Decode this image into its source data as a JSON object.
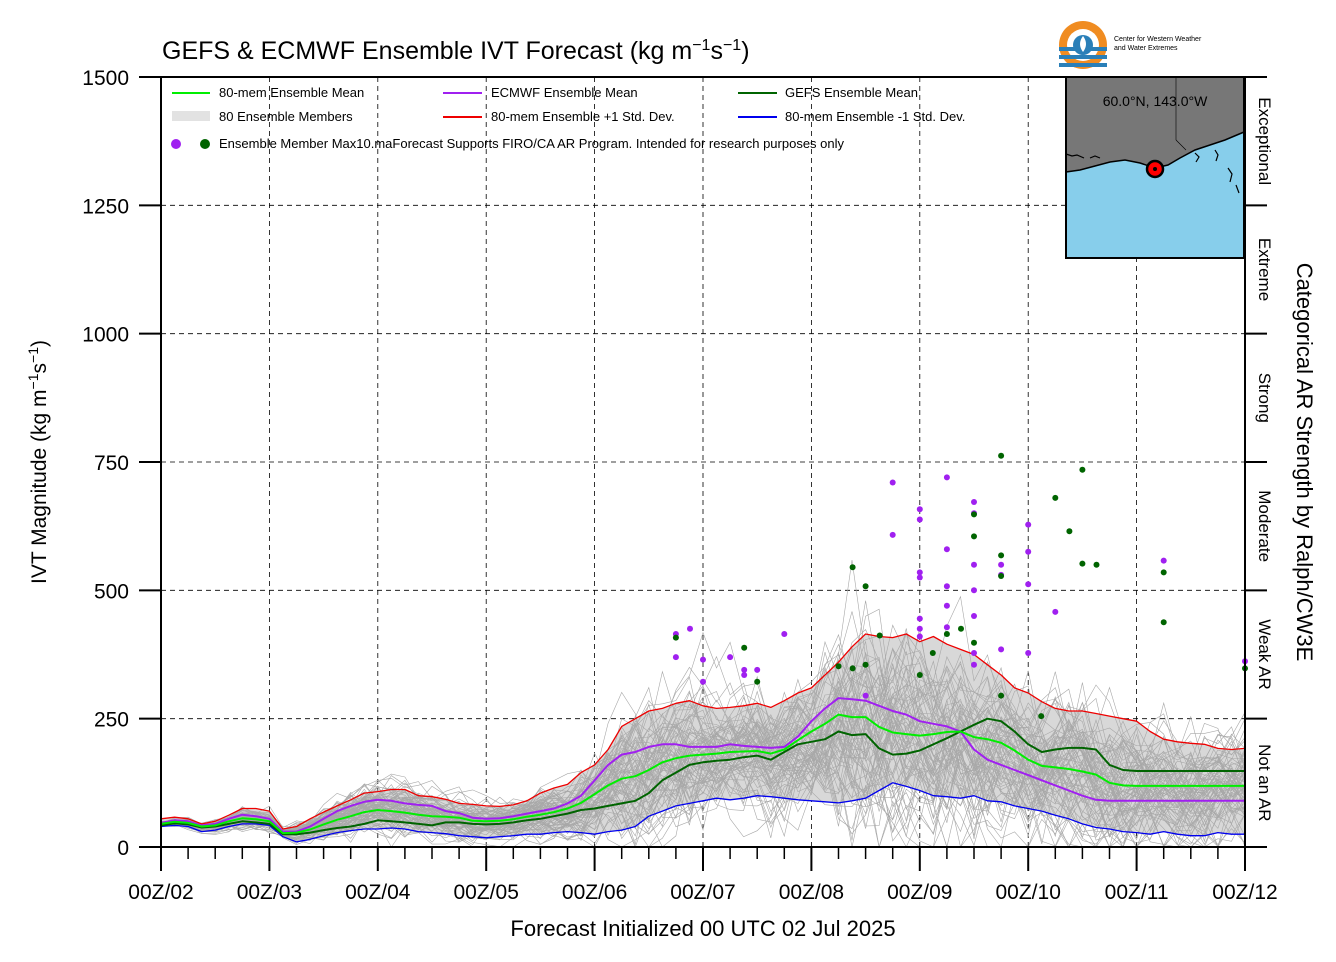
{
  "chart_data": {
    "type": "line",
    "title": "GEFS & ECMWF Ensemble IVT Forecast (kg m⁻¹s⁻¹)",
    "title_main": "GEFS & ECMWF Ensemble IVT Forecast (kg m",
    "title_exp1": "−1",
    "title_mid": "s",
    "title_exp2": "−1",
    "title_end": ")",
    "xlabel": "Forecast Initialized 00 UTC 02 Jul 2025",
    "ylabel": "IVT Magnitude (kg m⁻¹s⁻¹)",
    "ylabel_main": "IVT Magnitude (kg m",
    "ylabel_exp1": "−1",
    "ylabel_mid": "s",
    "ylabel_exp2": "−1",
    "ylabel_end": ")",
    "right_axis_label": "Categorical AR Strength by Ralph/CW3E",
    "ylim": [
      0,
      1500
    ],
    "xlim": [
      0,
      10
    ],
    "grid": true,
    "x_ticks": [
      "00Z/02",
      "00Z/03",
      "00Z/04",
      "00Z/05",
      "00Z/06",
      "00Z/07",
      "00Z/08",
      "00Z/09",
      "00Z/10",
      "00Z/11",
      "00Z/12"
    ],
    "y_ticks": [
      0,
      250,
      500,
      750,
      1000,
      1250,
      1500
    ],
    "categories_right": [
      {
        "name": "Not an AR",
        "from": 0,
        "to": 250
      },
      {
        "name": "Weak AR",
        "from": 250,
        "to": 500
      },
      {
        "name": "Moderate",
        "from": 500,
        "to": 750
      },
      {
        "name": "Strong",
        "from": 750,
        "to": 1000
      },
      {
        "name": "Extreme",
        "from": 1000,
        "to": 1250
      },
      {
        "name": "Exceptional",
        "from": 1250,
        "to": 1500
      }
    ],
    "legend": {
      "placement": "top-left",
      "entries": [
        {
          "label": "80-mem Ensemble Mean",
          "color": "#00ee00"
        },
        {
          "label": "ECMWF Ensemble Mean",
          "color": "#a020f0"
        },
        {
          "label": "GEFS Ensemble Mean",
          "color": "#006400"
        },
        {
          "label": "80 Ensemble Members",
          "color": "#b0b0b0"
        },
        {
          "label": "80-mem Ensemble +1 Std. Dev.",
          "color": "#ee0000"
        },
        {
          "label": "80-mem Ensemble -1 Std. Dev.",
          "color": "#0000ee"
        }
      ],
      "dots_label": "Ensemble Member Max",
      "note": "10.maForecast Supports FIRO/CA AR Program. Intended for research purposes only"
    },
    "inset_map": {
      "label": "60.0°N, 143.0°W",
      "ocean_color": "#87ceeb",
      "land_color": "#777777",
      "marker_color": "#ff0000"
    },
    "logo_text": [
      "Center for Western Weather",
      "and Water Extremes"
    ],
    "x": [
      0,
      0.125,
      0.25,
      0.375,
      0.5,
      0.625,
      0.75,
      0.875,
      1,
      1.125,
      1.25,
      1.375,
      1.5,
      1.625,
      1.75,
      1.875,
      2,
      2.125,
      2.25,
      2.375,
      2.5,
      2.625,
      2.75,
      2.875,
      3,
      3.125,
      3.25,
      3.375,
      3.5,
      3.625,
      3.75,
      3.875,
      4,
      4.125,
      4.25,
      4.375,
      4.5,
      4.625,
      4.75,
      4.875,
      5,
      5.125,
      5.25,
      5.375,
      5.5,
      5.625,
      5.75,
      5.875,
      6,
      6.125,
      6.25,
      6.375,
      6.5,
      6.625,
      6.75,
      6.875,
      7,
      7.125,
      7.25,
      7.375,
      7.5,
      7.625,
      7.75,
      7.875,
      8,
      8.125,
      8.25,
      8.375,
      8.5,
      8.625,
      8.75,
      8.875,
      9,
      9.125,
      9.25,
      9.375,
      9.5,
      9.625,
      9.75,
      9.875,
      10
    ],
    "series": [
      {
        "name": "80-mem Ensemble +1 Std. Dev.",
        "color": "#ee0000",
        "width": 1.3,
        "values": [
          55,
          58,
          55,
          45,
          50,
          62,
          75,
          75,
          70,
          35,
          40,
          55,
          68,
          80,
          92,
          105,
          108,
          112,
          112,
          100,
          98,
          93,
          85,
          83,
          80,
          79,
          82,
          90,
          105,
          115,
          122,
          145,
          160,
          190,
          235,
          250,
          265,
          270,
          280,
          285,
          275,
          270,
          272,
          275,
          280,
          272,
          285,
          300,
          310,
          335,
          360,
          390,
          415,
          410,
          408,
          415,
          400,
          410,
          395,
          385,
          375,
          355,
          335,
          310,
          300,
          283,
          270,
          265,
          265,
          260,
          255,
          250,
          245,
          225,
          210,
          205,
          202,
          200,
          192,
          190,
          192
        ]
      },
      {
        "name": "80-mem Ensemble -1 Std. Dev.",
        "color": "#0000ee",
        "width": 1.3,
        "values": [
          40,
          42,
          40,
          30,
          33,
          40,
          45,
          45,
          42,
          20,
          10,
          15,
          22,
          28,
          32,
          35,
          35,
          37,
          35,
          30,
          28,
          26,
          22,
          20,
          18,
          20,
          22,
          25,
          25,
          28,
          30,
          28,
          25,
          30,
          33,
          40,
          60,
          70,
          80,
          85,
          90,
          95,
          92,
          95,
          100,
          98,
          95,
          92,
          90,
          88,
          86,
          90,
          95,
          110,
          125,
          118,
          110,
          100,
          98,
          95,
          100,
          90,
          88,
          80,
          75,
          70,
          62,
          55,
          45,
          38,
          35,
          30,
          28,
          25,
          30,
          25,
          22,
          22,
          28,
          25,
          25
        ]
      },
      {
        "name": "GEFS Ensemble Mean",
        "color": "#006400",
        "width": 2,
        "values": [
          42,
          46,
          44,
          38,
          40,
          45,
          50,
          48,
          45,
          25,
          25,
          28,
          33,
          37,
          40,
          45,
          52,
          50,
          48,
          45,
          42,
          48,
          48,
          45,
          44,
          45,
          48,
          52,
          55,
          60,
          65,
          72,
          75,
          80,
          85,
          90,
          105,
          130,
          145,
          160,
          165,
          168,
          170,
          175,
          178,
          170,
          185,
          200,
          205,
          210,
          225,
          218,
          220,
          192,
          180,
          182,
          188,
          200,
          212,
          225,
          238,
          250,
          245,
          225,
          200,
          185,
          190,
          193,
          193,
          190,
          160,
          150,
          148,
          148,
          148,
          148,
          148,
          148,
          148,
          148,
          148
        ]
      },
      {
        "name": "ECMWF Ensemble Mean",
        "color": "#a020f0",
        "width": 2,
        "values": [
          47,
          52,
          50,
          42,
          45,
          55,
          63,
          60,
          55,
          30,
          30,
          40,
          55,
          70,
          80,
          88,
          92,
          90,
          85,
          82,
          80,
          70,
          66,
          57,
          55,
          56,
          60,
          65,
          70,
          75,
          85,
          100,
          130,
          160,
          180,
          185,
          195,
          200,
          200,
          195,
          195,
          195,
          200,
          197,
          195,
          193,
          195,
          215,
          245,
          270,
          290,
          288,
          285,
          275,
          265,
          258,
          245,
          240,
          235,
          225,
          190,
          170,
          160,
          150,
          140,
          130,
          120,
          110,
          100,
          92,
          90,
          90,
          90,
          90,
          90,
          90,
          90,
          90,
          90,
          90,
          90
        ]
      },
      {
        "name": "80-mem Ensemble Mean",
        "color": "#00ee00",
        "width": 2,
        "values": [
          45,
          49,
          47,
          40,
          42,
          50,
          56,
          54,
          50,
          27,
          28,
          34,
          44,
          53,
          60,
          68,
          72,
          70,
          67,
          63,
          60,
          59,
          57,
          51,
          50,
          51,
          54,
          59,
          63,
          68,
          75,
          86,
          103,
          120,
          133,
          138,
          150,
          165,
          173,
          178,
          180,
          182,
          185,
          186,
          187,
          182,
          190,
          208,
          225,
          240,
          258,
          253,
          253,
          234,
          223,
          220,
          217,
          220,
          224,
          225,
          214,
          210,
          203,
          188,
          170,
          158,
          155,
          152,
          147,
          141,
          125,
          120,
          119,
          119,
          119,
          119,
          119,
          119,
          119,
          119,
          119
        ]
      }
    ],
    "max_points": [
      {
        "x": 4.75,
        "y": 415,
        "ensemble": "ECMWF"
      },
      {
        "x": 4.75,
        "y": 370,
        "ensemble": "ECMWF"
      },
      {
        "x": 4.75,
        "y": 408,
        "ensemble": "GEFS"
      },
      {
        "x": 4.88,
        "y": 425,
        "ensemble": "ECMWF"
      },
      {
        "x": 5.0,
        "y": 365,
        "ensemble": "ECMWF"
      },
      {
        "x": 5.0,
        "y": 322,
        "ensemble": "ECMWF"
      },
      {
        "x": 5.25,
        "y": 370,
        "ensemble": "ECMWF"
      },
      {
        "x": 5.38,
        "y": 345,
        "ensemble": "ECMWF"
      },
      {
        "x": 5.38,
        "y": 335,
        "ensemble": "ECMWF"
      },
      {
        "x": 5.38,
        "y": 388,
        "ensemble": "GEFS"
      },
      {
        "x": 5.5,
        "y": 345,
        "ensemble": "ECMWF"
      },
      {
        "x": 5.5,
        "y": 322,
        "ensemble": "GEFS"
      },
      {
        "x": 5.75,
        "y": 415,
        "ensemble": "ECMWF"
      },
      {
        "x": 6.25,
        "y": 352,
        "ensemble": "GEFS"
      },
      {
        "x": 6.38,
        "y": 545,
        "ensemble": "GEFS"
      },
      {
        "x": 6.38,
        "y": 348,
        "ensemble": "GEFS"
      },
      {
        "x": 6.5,
        "y": 508,
        "ensemble": "GEFS"
      },
      {
        "x": 6.5,
        "y": 355,
        "ensemble": "GEFS"
      },
      {
        "x": 6.5,
        "y": 295,
        "ensemble": "ECMWF"
      },
      {
        "x": 6.63,
        "y": 412,
        "ensemble": "GEFS"
      },
      {
        "x": 6.75,
        "y": 710,
        "ensemble": "ECMWF"
      },
      {
        "x": 6.75,
        "y": 608,
        "ensemble": "ECMWF"
      },
      {
        "x": 7.0,
        "y": 658,
        "ensemble": "ECMWF"
      },
      {
        "x": 7.0,
        "y": 638,
        "ensemble": "ECMWF"
      },
      {
        "x": 7.0,
        "y": 535,
        "ensemble": "ECMWF"
      },
      {
        "x": 7.0,
        "y": 525,
        "ensemble": "ECMWF"
      },
      {
        "x": 7.0,
        "y": 445,
        "ensemble": "ECMWF"
      },
      {
        "x": 7.0,
        "y": 425,
        "ensemble": "ECMWF"
      },
      {
        "x": 7.0,
        "y": 410,
        "ensemble": "ECMWF"
      },
      {
        "x": 7.0,
        "y": 335,
        "ensemble": "GEFS"
      },
      {
        "x": 7.12,
        "y": 378,
        "ensemble": "GEFS"
      },
      {
        "x": 7.25,
        "y": 720,
        "ensemble": "ECMWF"
      },
      {
        "x": 7.25,
        "y": 580,
        "ensemble": "ECMWF"
      },
      {
        "x": 7.25,
        "y": 508,
        "ensemble": "ECMWF"
      },
      {
        "x": 7.25,
        "y": 470,
        "ensemble": "ECMWF"
      },
      {
        "x": 7.25,
        "y": 428,
        "ensemble": "ECMWF"
      },
      {
        "x": 7.25,
        "y": 415,
        "ensemble": "GEFS"
      },
      {
        "x": 7.38,
        "y": 425,
        "ensemble": "GEFS"
      },
      {
        "x": 7.5,
        "y": 672,
        "ensemble": "ECMWF"
      },
      {
        "x": 7.5,
        "y": 650,
        "ensemble": "ECMWF"
      },
      {
        "x": 7.5,
        "y": 648,
        "ensemble": "GEFS"
      },
      {
        "x": 7.5,
        "y": 605,
        "ensemble": "GEFS"
      },
      {
        "x": 7.5,
        "y": 550,
        "ensemble": "ECMWF"
      },
      {
        "x": 7.5,
        "y": 500,
        "ensemble": "ECMWF"
      },
      {
        "x": 7.5,
        "y": 450,
        "ensemble": "ECMWF"
      },
      {
        "x": 7.5,
        "y": 398,
        "ensemble": "GEFS"
      },
      {
        "x": 7.5,
        "y": 378,
        "ensemble": "ECMWF"
      },
      {
        "x": 7.5,
        "y": 355,
        "ensemble": "ECMWF"
      },
      {
        "x": 7.75,
        "y": 762,
        "ensemble": "GEFS"
      },
      {
        "x": 7.75,
        "y": 568,
        "ensemble": "GEFS"
      },
      {
        "x": 7.75,
        "y": 550,
        "ensemble": "ECMWF"
      },
      {
        "x": 7.75,
        "y": 530,
        "ensemble": "ECMWF"
      },
      {
        "x": 7.75,
        "y": 528,
        "ensemble": "GEFS"
      },
      {
        "x": 7.75,
        "y": 385,
        "ensemble": "ECMWF"
      },
      {
        "x": 7.75,
        "y": 295,
        "ensemble": "GEFS"
      },
      {
        "x": 8.0,
        "y": 628,
        "ensemble": "ECMWF"
      },
      {
        "x": 8.0,
        "y": 575,
        "ensemble": "ECMWF"
      },
      {
        "x": 8.0,
        "y": 512,
        "ensemble": "ECMWF"
      },
      {
        "x": 8.0,
        "y": 378,
        "ensemble": "ECMWF"
      },
      {
        "x": 8.12,
        "y": 255,
        "ensemble": "GEFS"
      },
      {
        "x": 8.25,
        "y": 680,
        "ensemble": "GEFS"
      },
      {
        "x": 8.25,
        "y": 458,
        "ensemble": "ECMWF"
      },
      {
        "x": 8.38,
        "y": 615,
        "ensemble": "GEFS"
      },
      {
        "x": 8.5,
        "y": 735,
        "ensemble": "GEFS"
      },
      {
        "x": 8.5,
        "y": 552,
        "ensemble": "GEFS"
      },
      {
        "x": 8.63,
        "y": 550,
        "ensemble": "GEFS"
      },
      {
        "x": 9.25,
        "y": 558,
        "ensemble": "ECMWF"
      },
      {
        "x": 9.25,
        "y": 535,
        "ensemble": "GEFS"
      },
      {
        "x": 9.25,
        "y": 438,
        "ensemble": "GEFS"
      },
      {
        "x": 10.0,
        "y": 362,
        "ensemble": "ECMWF"
      },
      {
        "x": 10.0,
        "y": 348,
        "ensemble": "GEFS"
      }
    ]
  }
}
